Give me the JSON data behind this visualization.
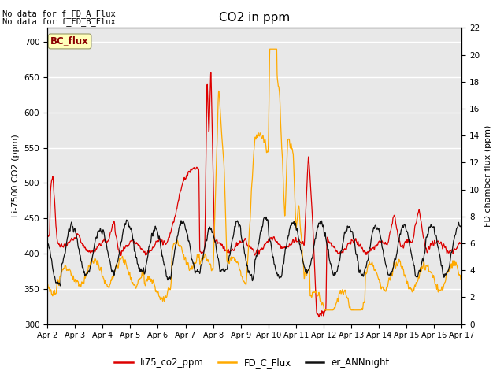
{
  "title": "CO2 in ppm",
  "ylabel_left": "Li-7500 CO2 (ppm)",
  "ylabel_right": "FD chamber flux (ppm)",
  "xlim": [
    0,
    15
  ],
  "ylim_left": [
    300,
    720
  ],
  "ylim_right": [
    0,
    22
  ],
  "yticks_left": [
    300,
    350,
    400,
    450,
    500,
    550,
    600,
    650,
    700
  ],
  "yticks_right": [
    0,
    2,
    4,
    6,
    8,
    10,
    12,
    14,
    16,
    18,
    20,
    22
  ],
  "xtick_labels": [
    "Apr 2",
    "Apr 3",
    "Apr 4",
    "Apr 5",
    "Apr 6",
    "Apr 7",
    "Apr 8",
    "Apr 9",
    "Apr 10",
    "Apr 11",
    "Apr 12",
    "Apr 13",
    "Apr 14",
    "Apr 15",
    "Apr 16",
    "Apr 17"
  ],
  "no_data_text1": "No data for f_FD_A_Flux",
  "no_data_text2": "No data for f_FD_B_Flux",
  "bc_flux_label": "BC_flux",
  "legend_entries": [
    "li75_co2_ppm",
    "FD_C_Flux",
    "er_ANNnight"
  ],
  "line_colors": [
    "#dd0000",
    "#ffaa00",
    "#111111"
  ],
  "background_color": "#e8e8e8",
  "grid_color": "#ffffff",
  "fig_bg": "#ffffff"
}
